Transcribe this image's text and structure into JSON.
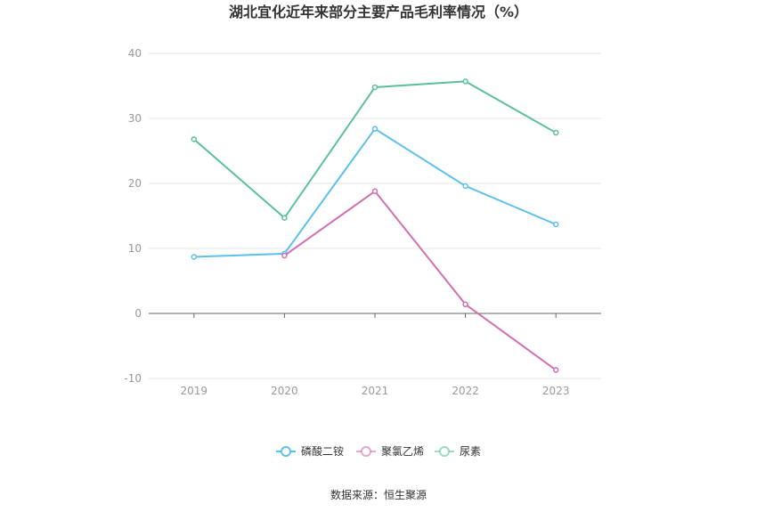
{
  "chart_data": {
    "type": "line",
    "title": "湖北宜化近年来部分主要产品毛利率情况（%）",
    "categories": [
      "2019",
      "2020",
      "2021",
      "2022",
      "2023"
    ],
    "ylim": [
      -10,
      40
    ],
    "yticks": [
      -10,
      0,
      10,
      20,
      30,
      40
    ],
    "grid": true,
    "legend_position": "bottom",
    "series": [
      {
        "name": "磷酸二铵",
        "color": "#5bc0eb",
        "values": [
          8.7,
          9.2,
          28.4,
          19.6,
          13.7
        ]
      },
      {
        "name": "聚氯乙烯",
        "color": "#d16fb3",
        "values": [
          null,
          8.9,
          18.8,
          1.4,
          -8.7
        ]
      },
      {
        "name": "尿素",
        "color": "#5bbf9f",
        "values": [
          26.8,
          14.7,
          34.8,
          35.7,
          27.8
        ]
      }
    ]
  },
  "source": "数据来源：恒生聚源"
}
